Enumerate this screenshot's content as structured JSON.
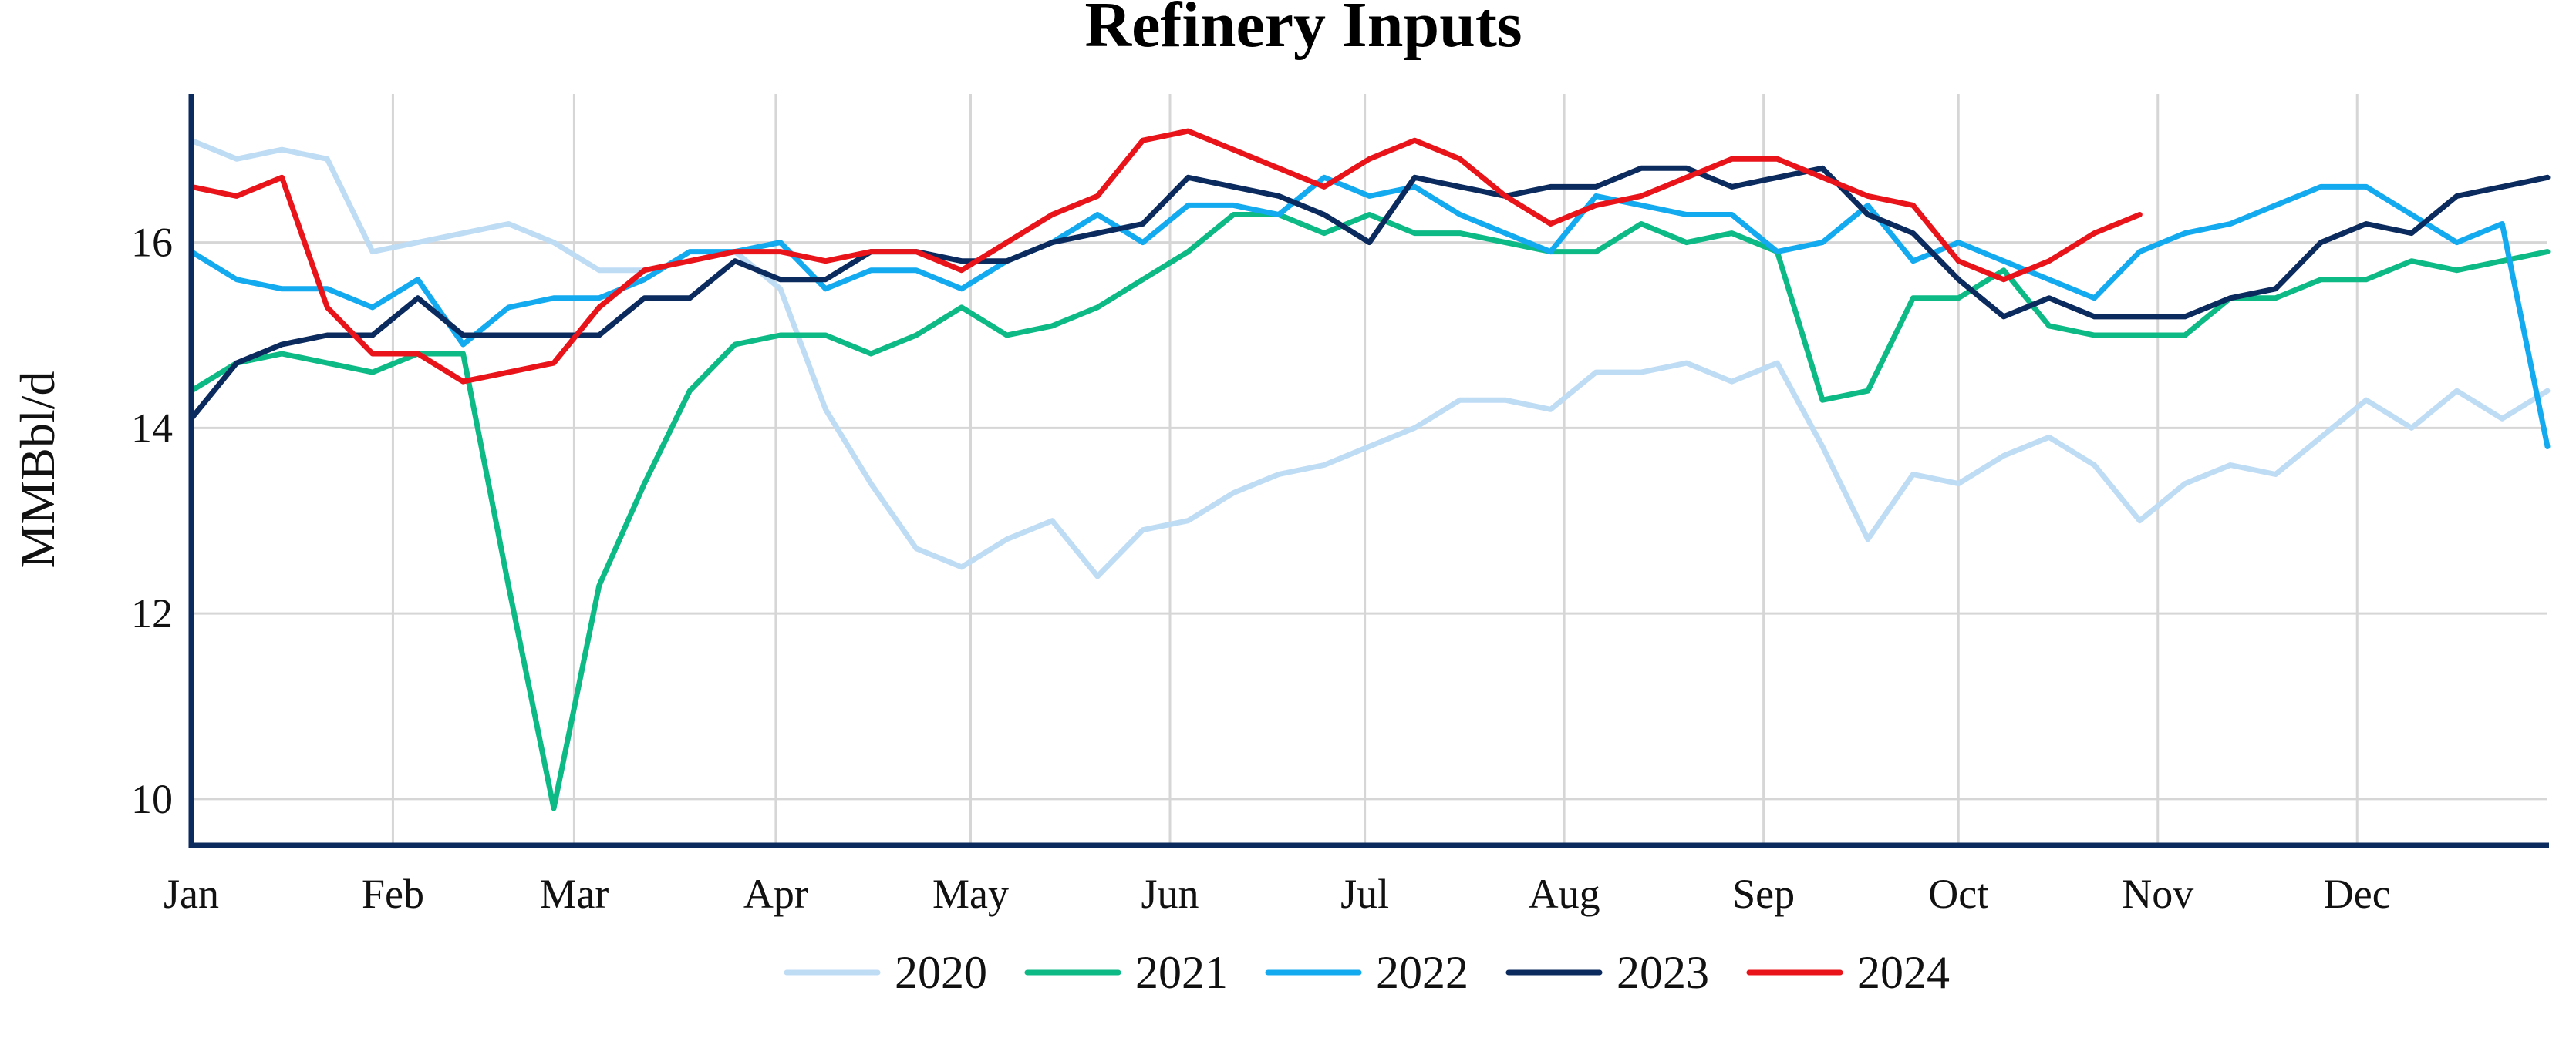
{
  "chart_data": {
    "type": "line",
    "title": "Refinery Inputs",
    "ylabel": "MMBbl/d",
    "xlabel": "",
    "ylim": [
      9.5,
      17.6
    ],
    "xlim": [
      1,
      53
    ],
    "y_ticks": [
      10,
      12,
      14,
      16
    ],
    "x_ticks": [
      {
        "week": 1.0,
        "label": "Jan"
      },
      {
        "week": 5.45,
        "label": "Feb"
      },
      {
        "week": 9.45,
        "label": "Mar"
      },
      {
        "week": 13.9,
        "label": "Apr"
      },
      {
        "week": 18.2,
        "label": "May"
      },
      {
        "week": 22.6,
        "label": "Jun"
      },
      {
        "week": 26.9,
        "label": "Jul"
      },
      {
        "week": 31.3,
        "label": "Aug"
      },
      {
        "week": 35.7,
        "label": "Sep"
      },
      {
        "week": 40.0,
        "label": "Oct"
      },
      {
        "week": 44.4,
        "label": "Nov"
      },
      {
        "week": 48.8,
        "label": "Dec"
      }
    ],
    "grid": true,
    "legend_position": "bottom-center",
    "series": [
      {
        "name": "2020",
        "color": "#bfdcf5",
        "x": [
          1,
          2,
          3,
          4,
          5,
          6,
          7,
          8,
          9,
          10,
          11,
          12,
          13,
          14,
          15,
          16,
          17,
          18,
          19,
          20,
          21,
          22,
          23,
          24,
          25,
          26,
          27,
          28,
          29,
          30,
          31,
          32,
          33,
          34,
          35,
          36,
          37,
          38,
          39,
          40,
          41,
          42,
          43,
          44,
          45,
          46,
          47,
          48,
          49,
          50,
          51,
          52,
          53
        ],
        "values": [
          17.1,
          16.9,
          17.0,
          16.9,
          15.9,
          16.0,
          16.1,
          16.2,
          16.0,
          15.7,
          15.7,
          15.8,
          15.9,
          15.5,
          14.2,
          13.4,
          12.7,
          12.5,
          12.8,
          13.0,
          12.4,
          12.9,
          13.0,
          13.3,
          13.5,
          13.6,
          13.8,
          14.0,
          14.3,
          14.3,
          14.2,
          14.6,
          14.6,
          14.7,
          14.5,
          14.7,
          13.8,
          12.8,
          13.5,
          13.4,
          13.7,
          13.9,
          13.6,
          13.0,
          13.4,
          13.6,
          13.5,
          13.9,
          14.3,
          14.0,
          14.4,
          14.1,
          14.4
        ]
      },
      {
        "name": "2021",
        "color": "#0dba86",
        "x": [
          1,
          2,
          3,
          4,
          5,
          6,
          7,
          8,
          9,
          10,
          11,
          12,
          13,
          14,
          15,
          16,
          17,
          18,
          19,
          20,
          21,
          22,
          23,
          24,
          25,
          26,
          27,
          28,
          29,
          30,
          31,
          32,
          33,
          34,
          35,
          36,
          37,
          38,
          39,
          40,
          41,
          42,
          43,
          44,
          45,
          46,
          47,
          48,
          49,
          50,
          51,
          52,
          53
        ],
        "values": [
          14.4,
          14.7,
          14.8,
          14.7,
          14.6,
          14.8,
          14.8,
          12.3,
          9.9,
          12.3,
          13.4,
          14.4,
          14.9,
          15.0,
          15.0,
          14.8,
          15.0,
          15.3,
          15.0,
          15.1,
          15.3,
          15.6,
          15.9,
          16.3,
          16.3,
          16.1,
          16.3,
          16.1,
          16.1,
          16.0,
          15.9,
          15.9,
          16.2,
          16.0,
          16.1,
          15.9,
          14.3,
          14.4,
          15.4,
          15.4,
          15.7,
          15.1,
          15.0,
          15.0,
          15.0,
          15.4,
          15.4,
          15.6,
          15.6,
          15.8,
          15.7,
          15.8,
          15.9
        ]
      },
      {
        "name": "2022",
        "color": "#14aaf0",
        "x": [
          1,
          2,
          3,
          4,
          5,
          6,
          7,
          8,
          9,
          10,
          11,
          12,
          13,
          14,
          15,
          16,
          17,
          18,
          19,
          20,
          21,
          22,
          23,
          24,
          25,
          26,
          27,
          28,
          29,
          30,
          31,
          32,
          33,
          34,
          35,
          36,
          37,
          38,
          39,
          40,
          41,
          42,
          43,
          44,
          45,
          46,
          47,
          48,
          49,
          50,
          51,
          52,
          53
        ],
        "values": [
          15.9,
          15.6,
          15.5,
          15.5,
          15.3,
          15.6,
          14.9,
          15.3,
          15.4,
          15.4,
          15.6,
          15.9,
          15.9,
          16.0,
          15.5,
          15.7,
          15.7,
          15.5,
          15.8,
          16.0,
          16.3,
          16.0,
          16.4,
          16.4,
          16.3,
          16.7,
          16.5,
          16.6,
          16.3,
          16.1,
          15.9,
          16.5,
          16.4,
          16.3,
          16.3,
          15.9,
          16.0,
          16.4,
          15.8,
          16.0,
          15.8,
          15.6,
          15.4,
          15.9,
          16.1,
          16.2,
          16.4,
          16.6,
          16.6,
          16.3,
          16.0,
          16.2,
          13.8
        ]
      },
      {
        "name": "2023",
        "color": "#0b2a5e",
        "x": [
          1,
          2,
          3,
          4,
          5,
          6,
          7,
          8,
          9,
          10,
          11,
          12,
          13,
          14,
          15,
          16,
          17,
          18,
          19,
          20,
          21,
          22,
          23,
          24,
          25,
          26,
          27,
          28,
          29,
          30,
          31,
          32,
          33,
          34,
          35,
          36,
          37,
          38,
          39,
          40,
          41,
          42,
          43,
          44,
          45,
          46,
          47,
          48,
          49,
          50,
          51,
          52,
          53
        ],
        "values": [
          14.1,
          14.7,
          14.9,
          15.0,
          15.0,
          15.4,
          15.0,
          15.0,
          15.0,
          15.0,
          15.4,
          15.4,
          15.8,
          15.6,
          15.6,
          15.9,
          15.9,
          15.8,
          15.8,
          16.0,
          16.1,
          16.2,
          16.7,
          16.6,
          16.5,
          16.3,
          16.0,
          16.7,
          16.6,
          16.5,
          16.6,
          16.6,
          16.8,
          16.8,
          16.6,
          16.7,
          16.8,
          16.3,
          16.1,
          15.6,
          15.2,
          15.4,
          15.2,
          15.2,
          15.2,
          15.4,
          15.5,
          16.0,
          16.2,
          16.1,
          16.5,
          16.6,
          16.7
        ]
      },
      {
        "name": "2024",
        "color": "#e8141a",
        "x": [
          1,
          2,
          3,
          4,
          5,
          6,
          7,
          8,
          9,
          10,
          11,
          12,
          13,
          14,
          15,
          16,
          17,
          18,
          19,
          20,
          21,
          22,
          23,
          24,
          25,
          26,
          27,
          28,
          29,
          30,
          31,
          32,
          33,
          34,
          35,
          36,
          37,
          38,
          39,
          40,
          41,
          42,
          43,
          44
        ],
        "values": [
          16.6,
          16.5,
          16.7,
          15.3,
          14.8,
          14.8,
          14.5,
          14.6,
          14.7,
          15.3,
          15.7,
          15.8,
          15.9,
          15.9,
          15.8,
          15.9,
          15.9,
          15.7,
          16.0,
          16.3,
          16.5,
          17.1,
          17.2,
          17.0,
          16.8,
          16.6,
          16.9,
          17.1,
          16.9,
          16.5,
          16.2,
          16.4,
          16.5,
          16.7,
          16.9,
          16.9,
          16.7,
          16.5,
          16.4,
          15.8,
          15.6,
          15.8,
          16.1,
          16.3
        ]
      }
    ]
  }
}
